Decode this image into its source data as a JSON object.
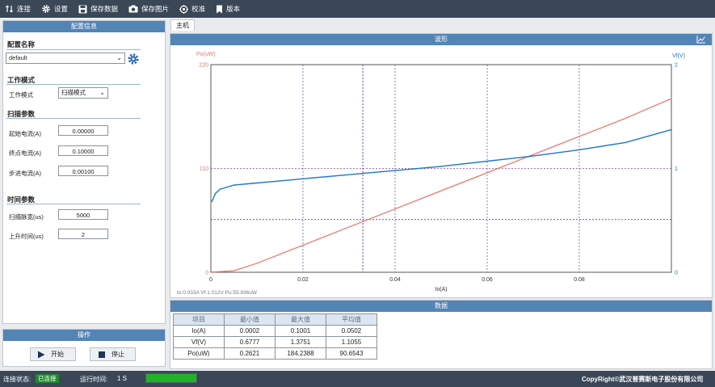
{
  "toolbar": {
    "connect": "连接",
    "settings": "设置",
    "save_data": "保存数据",
    "save_image": "保存图片",
    "calibrate": "校准",
    "version": "版本"
  },
  "config": {
    "header": "配置信息",
    "name_title": "配置名称",
    "name_value": "default",
    "mode_title": "工作模式",
    "mode_label": "工作模式",
    "mode_value": "扫描模式",
    "scan_title": "扫描参数",
    "start_current_label": "起始电流(A)",
    "start_current_value": "0.00000",
    "end_current_label": "终点电流(A)",
    "end_current_value": "0.10000",
    "step_current_label": "步进电流(A)",
    "step_current_value": "0.00100",
    "time_title": "时间参数",
    "pulse_width_label": "扫描脉宽(us)",
    "pulse_width_value": "5000",
    "rise_time_label": "上升时间(us)",
    "rise_time_value": "2"
  },
  "operation": {
    "header": "操作",
    "start": "开始",
    "stop": "停止"
  },
  "tab": {
    "main": "主机"
  },
  "waveform": {
    "header": "波形",
    "cursor_readout": "Io:0.033A  Vf:1.012V  Po:55.936uW"
  },
  "chart_data": {
    "type": "line",
    "xlabel": "Io(A)",
    "ylabel_left": "Po(uW)",
    "ylabel_right": "Vf(V)",
    "xlim": [
      0,
      0.1
    ],
    "ylim_left": [
      0,
      220
    ],
    "ylim_right": [
      0,
      2
    ],
    "x_ticks": [
      "0",
      "0.02",
      "0.04",
      "0.06",
      "0.08"
    ],
    "y_left_ticks": [
      "0",
      "110",
      "220"
    ],
    "y_right_ticks": [
      "0",
      "1",
      "2"
    ],
    "cursor": {
      "x": 0.033,
      "vf": 1.012,
      "po": 55.936
    },
    "series": [
      {
        "axis": "left",
        "color": "#e8827a",
        "x": [
          0.0002,
          0.005,
          0.01,
          0.02,
          0.03,
          0.04,
          0.05,
          0.06,
          0.07,
          0.08,
          0.09,
          0.1001
        ],
        "y": [
          0.26,
          1.5,
          9.5,
          28.7,
          47.9,
          67.1,
          86.3,
          105.5,
          124.7,
          143.9,
          163.1,
          184.24
        ]
      },
      {
        "axis": "right",
        "color": "#1f77c4",
        "x": [
          0.0002,
          0.001,
          0.002,
          0.005,
          0.01,
          0.015,
          0.02,
          0.03,
          0.04,
          0.05,
          0.06,
          0.07,
          0.08,
          0.09,
          0.1001
        ],
        "y": [
          0.678,
          0.76,
          0.8,
          0.84,
          0.86,
          0.88,
          0.9,
          0.94,
          0.98,
          1.02,
          1.07,
          1.12,
          1.18,
          1.25,
          1.375
        ]
      }
    ]
  },
  "stats": {
    "header": "数据",
    "columns": [
      "项目",
      "最小值",
      "最大值",
      "平均值"
    ],
    "rows": [
      [
        "Io(A)",
        "0.0002",
        "0.1001",
        "0.0502"
      ],
      [
        "Vf(V)",
        "0.6777",
        "1.3751",
        "1.1055"
      ],
      [
        "Po(uW)",
        "0.2621",
        "184.2388",
        "90.6543"
      ]
    ]
  },
  "status": {
    "conn_label": "连接状态:",
    "conn_value": "已连接",
    "runtime_label": "运行时间:",
    "runtime_value": "1 S",
    "progress": 1.0,
    "copyright": "CopyRight©武汉普赛斯电子股份有限公司"
  }
}
